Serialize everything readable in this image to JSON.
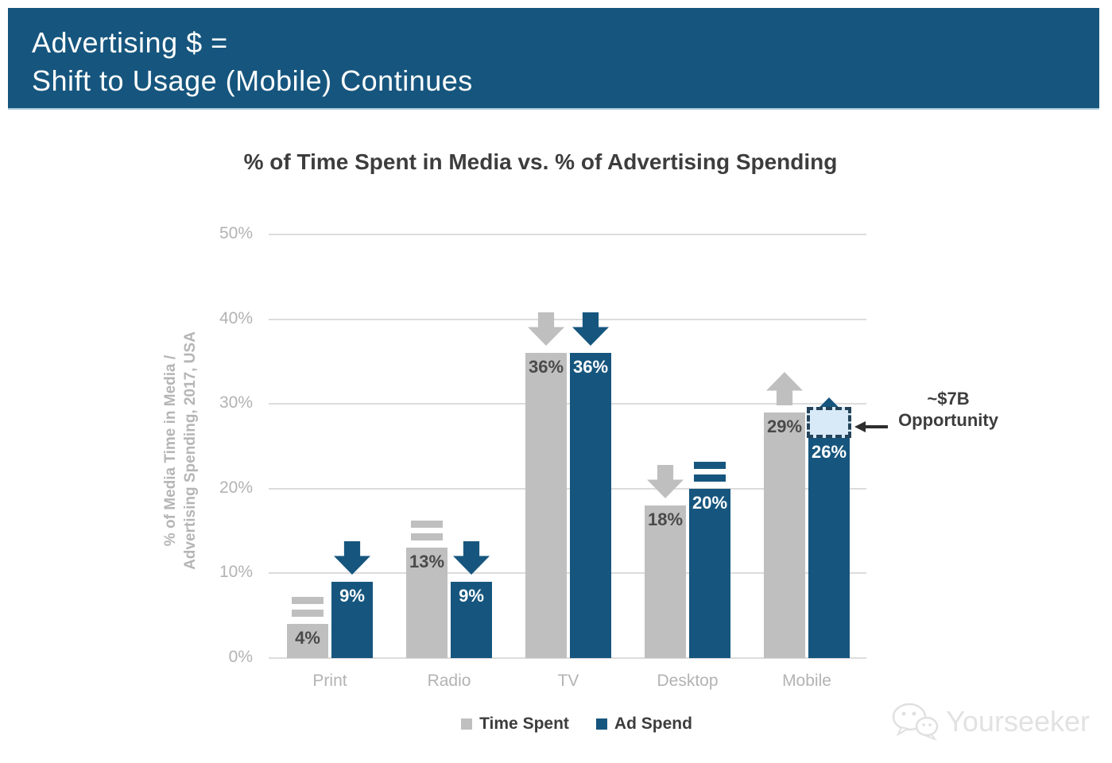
{
  "header": {
    "title_line1": "Advertising $ =",
    "title_line2": "Shift to Usage (Mobile) Continues",
    "background_color": "#16567e",
    "text_color": "#ffffff"
  },
  "chart_data": {
    "type": "bar",
    "title": "% of Time Spent in Media vs. % of Advertising Spending",
    "ylabel": "% of Media Time in Media / Advertising Spending, 2017, USA",
    "ylabel_line1": "% of Media Time in Media /",
    "ylabel_line2": "Advertising Spending, 2017, USA",
    "xlabel": "",
    "ylim": [
      0,
      50
    ],
    "yticks": [
      0,
      10,
      20,
      30,
      40,
      50
    ],
    "ytick_suffix": "%",
    "grid": true,
    "legend_position": "bottom",
    "categories": [
      "Print",
      "Radio",
      "TV",
      "Desktop",
      "Mobile"
    ],
    "series": [
      {
        "name": "Time Spent",
        "color": "#bfbfbf",
        "values": [
          4,
          13,
          36,
          18,
          29
        ],
        "trends": [
          "flat",
          "flat",
          "down",
          "down",
          "up"
        ]
      },
      {
        "name": "Ad Spend",
        "color": "#16567e",
        "values": [
          9,
          9,
          36,
          20,
          26
        ],
        "trends": [
          "down",
          "down",
          "down",
          "flat",
          "up"
        ]
      }
    ],
    "annotation": {
      "label_line1": "~$7B",
      "label_line2": "Opportunity",
      "target_category": "Mobile",
      "target_series": "Ad Spend",
      "box_from_value": 26,
      "box_to_value": 29.7,
      "box_fill": "#d8eaf7",
      "box_border": "#24435a",
      "arrow_color": "#2e2e2e"
    }
  },
  "legend": {
    "items": [
      {
        "label": "Time Spent",
        "color": "#bfbfbf"
      },
      {
        "label": "Ad Spend",
        "color": "#16567e"
      }
    ]
  },
  "watermark": {
    "text": "Yourseeker",
    "icon": "wechat-icon"
  }
}
